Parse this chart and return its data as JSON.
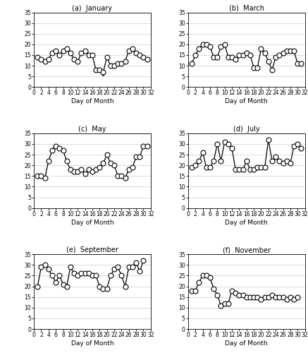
{
  "panels": [
    {
      "title": "(a)  January",
      "days": [
        1,
        2,
        3,
        4,
        5,
        6,
        7,
        8,
        9,
        10,
        11,
        12,
        13,
        14,
        15,
        16,
        17,
        18,
        19,
        20,
        21,
        22,
        23,
        24,
        25,
        26,
        27,
        28,
        29,
        30,
        31
      ],
      "observed": [
        14,
        13,
        12,
        13,
        16,
        17,
        15,
        17,
        18,
        16,
        13,
        12,
        16,
        17,
        15,
        15,
        8,
        8,
        7,
        14,
        10,
        10,
        11,
        11,
        12,
        17,
        18,
        16,
        15,
        14,
        13
      ],
      "imputed": [
        14,
        13,
        12,
        13,
        16,
        17,
        15,
        17,
        18,
        16,
        13,
        12,
        16,
        17,
        15,
        15,
        8,
        8,
        6,
        14,
        10,
        10,
        11,
        11,
        12,
        17,
        18,
        16,
        15,
        14,
        13
      ]
    },
    {
      "title": "(b)  March",
      "days": [
        1,
        2,
        3,
        4,
        5,
        6,
        7,
        8,
        9,
        10,
        11,
        12,
        13,
        14,
        15,
        16,
        17,
        18,
        19,
        20,
        21,
        22,
        23,
        24,
        25,
        26,
        27,
        28,
        29,
        30,
        31
      ],
      "observed": [
        11,
        15,
        18,
        20,
        20,
        19,
        14,
        14,
        19,
        20,
        14,
        14,
        13,
        15,
        15,
        16,
        15,
        9,
        9,
        18,
        16,
        12,
        8,
        14,
        15,
        16,
        17,
        17,
        17,
        11,
        11
      ],
      "imputed": [
        11,
        15,
        18,
        20,
        20,
        19,
        14,
        14,
        19,
        20,
        14,
        14,
        13,
        15,
        15,
        16,
        15,
        9,
        9,
        18,
        16,
        12,
        8,
        14,
        15,
        16,
        17,
        17,
        17,
        11,
        11
      ]
    },
    {
      "title": "(c)  May",
      "days": [
        1,
        2,
        3,
        4,
        5,
        6,
        7,
        8,
        9,
        10,
        11,
        12,
        13,
        14,
        15,
        16,
        17,
        18,
        19,
        20,
        21,
        22,
        23,
        24,
        25,
        26,
        27,
        28,
        29,
        30,
        31
      ],
      "observed": [
        15,
        15,
        14,
        22,
        27,
        29,
        28,
        27,
        22,
        18,
        17,
        17,
        18,
        16,
        18,
        17,
        18,
        19,
        21,
        25,
        21,
        20,
        15,
        15,
        14,
        18,
        19,
        24,
        24,
        29,
        29
      ],
      "imputed": [
        15,
        15,
        14,
        22,
        27,
        29,
        28,
        27,
        22,
        18,
        17,
        17,
        18,
        16,
        18,
        17,
        18,
        19,
        21,
        25,
        21,
        20,
        15,
        15,
        14,
        18,
        19,
        24,
        24,
        29,
        29
      ]
    },
    {
      "title": "(d)  July",
      "days": [
        1,
        2,
        3,
        4,
        5,
        6,
        7,
        8,
        9,
        10,
        11,
        12,
        13,
        14,
        15,
        16,
        17,
        18,
        19,
        20,
        21,
        22,
        23,
        24,
        25,
        26,
        27,
        28,
        29,
        30,
        31
      ],
      "observed": [
        19,
        20,
        22,
        26,
        19,
        19,
        22,
        30,
        22,
        31,
        30,
        28,
        18,
        18,
        18,
        22,
        18,
        18,
        19,
        19,
        19,
        32,
        22,
        24,
        22,
        21,
        22,
        21,
        29,
        30,
        28
      ],
      "imputed": [
        19,
        20,
        22,
        26,
        19,
        19,
        22,
        30,
        22,
        31,
        30,
        28,
        18,
        18,
        18,
        22,
        18,
        18,
        19,
        19,
        19,
        32,
        22,
        24,
        22,
        21,
        22,
        21,
        29,
        30,
        28
      ]
    },
    {
      "title": "(e)  September",
      "days": [
        1,
        2,
        3,
        4,
        5,
        6,
        7,
        8,
        9,
        10,
        11,
        12,
        13,
        14,
        15,
        16,
        17,
        18,
        19,
        20,
        21,
        22,
        23,
        24,
        25,
        26,
        27,
        28,
        29,
        30
      ],
      "observed": [
        20,
        29,
        30,
        28,
        25,
        22,
        25,
        21,
        20,
        29,
        26,
        25,
        26,
        26,
        26,
        25,
        25,
        20,
        19,
        19,
        25,
        28,
        29,
        25,
        20,
        29,
        29,
        31,
        27,
        32
      ],
      "imputed": [
        20,
        29,
        30,
        28,
        25,
        22,
        25,
        21,
        20,
        29,
        26,
        25,
        26,
        26,
        26,
        25,
        25,
        20,
        19,
        19,
        25,
        28,
        29,
        25,
        20,
        29,
        29,
        31,
        27,
        32
      ]
    },
    {
      "title": "(f)  November",
      "days": [
        1,
        2,
        3,
        4,
        5,
        6,
        7,
        8,
        9,
        10,
        11,
        12,
        13,
        14,
        15,
        16,
        17,
        18,
        19,
        20,
        21,
        22,
        23,
        24,
        25,
        26,
        27,
        28,
        29,
        30
      ],
      "observed": [
        18,
        18,
        22,
        25,
        25,
        24,
        19,
        16,
        11,
        12,
        12,
        18,
        17,
        16,
        16,
        15,
        15,
        15,
        15,
        14,
        15,
        15,
        16,
        15,
        15,
        15,
        14,
        15,
        14,
        15
      ],
      "imputed": [
        18,
        18,
        22,
        25,
        25,
        24,
        19,
        16,
        11,
        12,
        12,
        18,
        17,
        16,
        16,
        15,
        15,
        15,
        15,
        14,
        15,
        15,
        16,
        15,
        15,
        15,
        14,
        15,
        14,
        15
      ]
    }
  ],
  "ylim": [
    0,
    35
  ],
  "yticks": [
    0,
    5,
    10,
    15,
    20,
    25,
    30,
    35
  ],
  "xlim": [
    0,
    32
  ],
  "xticks": [
    0,
    2,
    4,
    6,
    8,
    10,
    12,
    14,
    16,
    18,
    20,
    22,
    24,
    26,
    28,
    30,
    32
  ],
  "xlabel": "Day of Month",
  "line_color": "black",
  "observed_ms": 5,
  "observed_mfc": "white",
  "observed_mec": "black",
  "observed_mew": 0.8,
  "imputed_ms": 2.5,
  "imputed_mfc": "black",
  "imputed_mec": "black",
  "imputed_mew": 0.5,
  "lw": 0.9,
  "title_fontsize": 7,
  "xlabel_fontsize": 6.5,
  "tick_fontsize": 5.5
}
